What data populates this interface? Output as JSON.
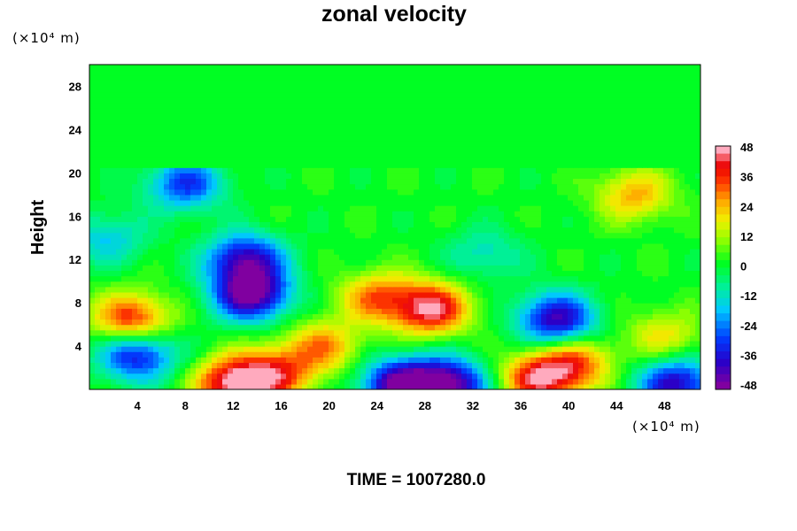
{
  "chart_data": {
    "type": "heatmap",
    "title": "zonal velocity",
    "ylabel": "Height",
    "xlabel": "",
    "y_unit": "(×10⁴ m)",
    "x_unit": "(×10⁴ m)",
    "footer": "TIME = 1007280.0",
    "xlim": [
      0,
      51
    ],
    "ylim": [
      0,
      30
    ],
    "x_ticks": [
      "4",
      "8",
      "12",
      "16",
      "20",
      "24",
      "28",
      "32",
      "36",
      "40",
      "44",
      "48"
    ],
    "y_ticks": [
      "4",
      "8",
      "12",
      "16",
      "20",
      "24",
      "28"
    ],
    "colorbar": {
      "range": [
        -48,
        48
      ],
      "ticks": [
        "48",
        "36",
        "24",
        "12",
        "0",
        "-12",
        "-24",
        "-36",
        "-48"
      ]
    },
    "upper_layer": {
      "y_min": 20.3,
      "value": 0
    },
    "background_value": 2,
    "features": [
      {
        "x": 13.5,
        "y": 8.8,
        "value": -48
      },
      {
        "x": 13.0,
        "y": 12.0,
        "value": -40
      },
      {
        "x": 39.0,
        "y": 6.5,
        "value": -42
      },
      {
        "x": 26.0,
        "y": 0.5,
        "value": -48
      },
      {
        "x": 30.0,
        "y": 0.5,
        "value": -46
      },
      {
        "x": 49.0,
        "y": 0.5,
        "value": -40
      },
      {
        "x": 4.0,
        "y": 3.2,
        "value": -36
      },
      {
        "x": 8.0,
        "y": 19.0,
        "value": -30
      },
      {
        "x": 28.5,
        "y": 7.5,
        "value": 46
      },
      {
        "x": 24.0,
        "y": 8.5,
        "value": 30
      },
      {
        "x": 12.0,
        "y": 0.6,
        "value": 46
      },
      {
        "x": 15.5,
        "y": 1.5,
        "value": 36
      },
      {
        "x": 37.5,
        "y": 1.0,
        "value": 42
      },
      {
        "x": 40.5,
        "y": 2.5,
        "value": 32
      },
      {
        "x": 3.5,
        "y": 6.5,
        "value": 40
      },
      {
        "x": 45.5,
        "y": 18.0,
        "value": 26
      },
      {
        "x": 48.0,
        "y": 5.0,
        "value": 20
      },
      {
        "x": 19.5,
        "y": 4.0,
        "value": 28
      },
      {
        "x": 1.5,
        "y": 14.0,
        "value": -16
      },
      {
        "x": 33.0,
        "y": 12.5,
        "value": -12
      }
    ]
  }
}
